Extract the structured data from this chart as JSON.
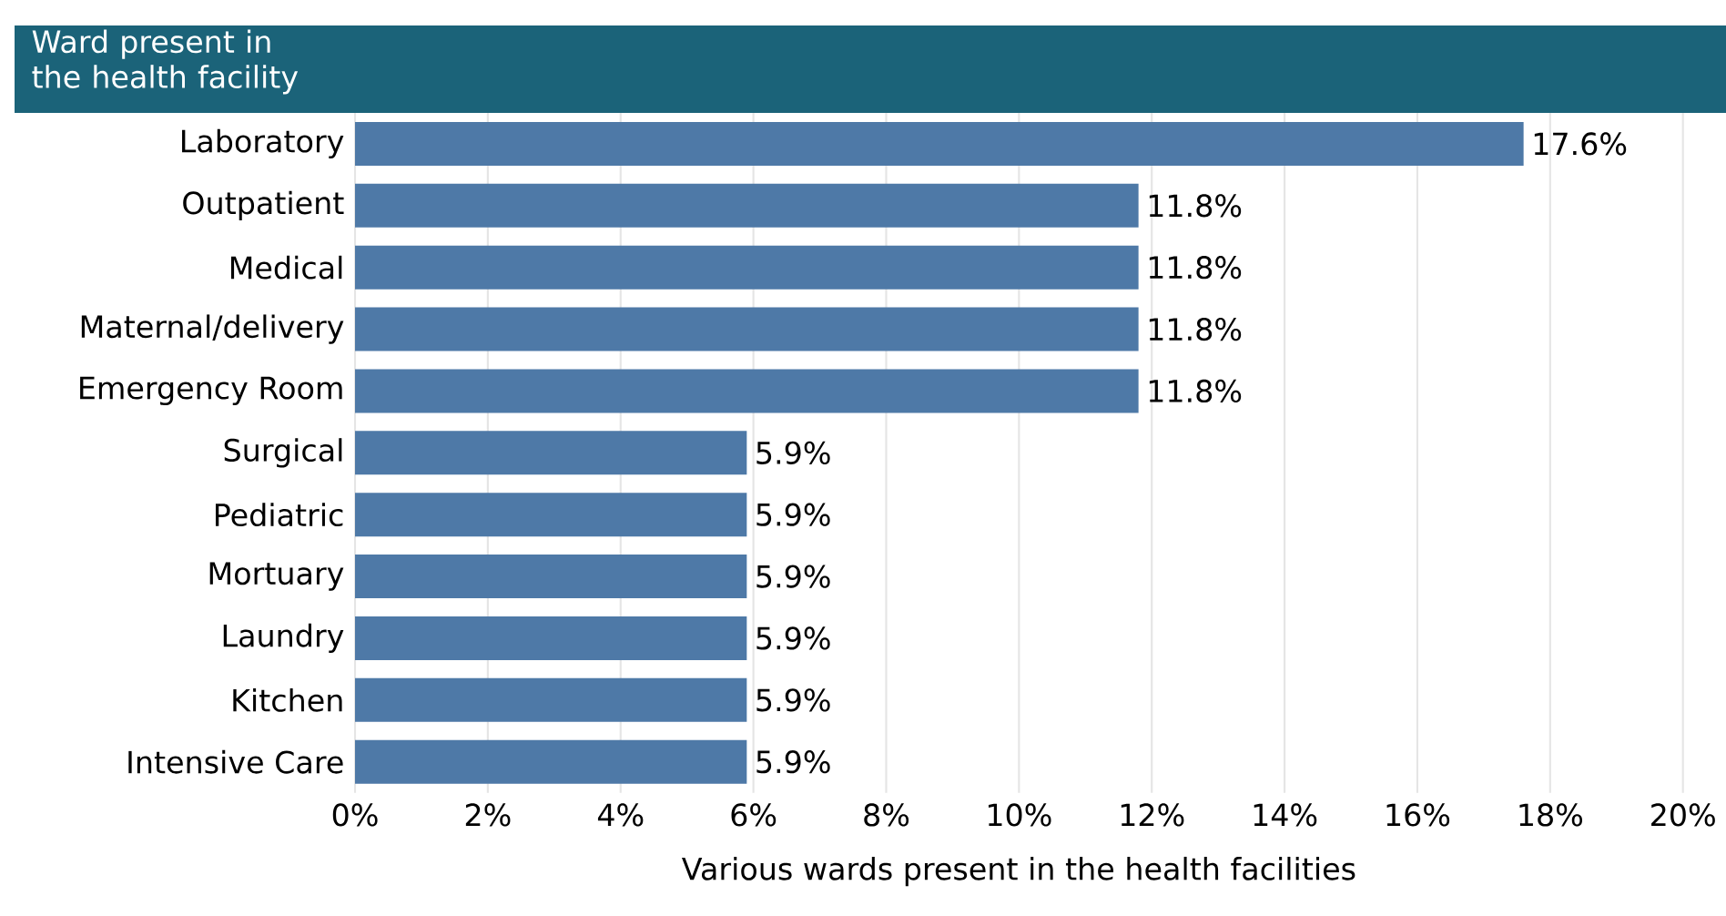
{
  "chart_data": {
    "type": "bar",
    "orientation": "horizontal",
    "title": "Ward present in the health facility",
    "xlabel": "Various wards present in the health facilities",
    "categories": [
      "Laboratory",
      "Outpatient",
      "Medical",
      "Maternal/delivery",
      "Emergency Room",
      "Surgical",
      "Pediatric",
      "Mortuary",
      "Laundry",
      "Kitchen",
      "Intensive Care"
    ],
    "values": [
      17.6,
      11.8,
      11.8,
      11.8,
      11.8,
      5.9,
      5.9,
      5.9,
      5.9,
      5.9,
      5.9
    ],
    "value_labels": [
      "17.6%",
      "11.8%",
      "11.8%",
      "11.8%",
      "11.8%",
      "5.9%",
      "5.9%",
      "5.9%",
      "5.9%",
      "5.9%",
      "5.9%"
    ],
    "color": "#4e79a7",
    "xlim": [
      0,
      20
    ],
    "xticks": [
      {
        "value": 0,
        "label": "0%"
      },
      {
        "value": 2,
        "label": "2%"
      },
      {
        "value": 4,
        "label": "4%"
      },
      {
        "value": 6,
        "label": "6%"
      },
      {
        "value": 8,
        "label": "8%"
      },
      {
        "value": 10,
        "label": "10%"
      },
      {
        "value": 12,
        "label": "12%"
      },
      {
        "value": 14,
        "label": "14%"
      },
      {
        "value": 16,
        "label": "16%"
      },
      {
        "value": 18,
        "label": "18%"
      },
      {
        "value": 20,
        "label": "20%"
      }
    ],
    "grid": "x"
  }
}
